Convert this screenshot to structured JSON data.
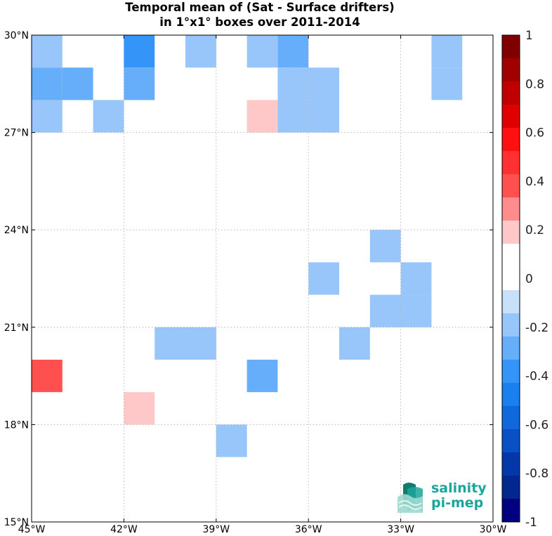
{
  "title": {
    "line1": "Temporal mean of (Sat - Surface drifters)",
    "line2": "in 1°x1° boxes over 2011-2014"
  },
  "axes": {
    "lon_ticks": [
      {
        "lon": -45,
        "label": "45°W"
      },
      {
        "lon": -42,
        "label": "42°W"
      },
      {
        "lon": -39,
        "label": "39°W"
      },
      {
        "lon": -36,
        "label": "36°W"
      },
      {
        "lon": -33,
        "label": "33°W"
      },
      {
        "lon": -30,
        "label": "30°W"
      }
    ],
    "lat_ticks": [
      {
        "lat": 30,
        "label": "30°N"
      },
      {
        "lat": 27,
        "label": "27°N"
      },
      {
        "lat": 24,
        "label": "24°N"
      },
      {
        "lat": 21,
        "label": "21°N"
      },
      {
        "lat": 18,
        "label": "18°N"
      },
      {
        "lat": 15,
        "label": "15°N"
      }
    ],
    "lon_range": [
      -45,
      -30
    ],
    "lat_range": [
      15,
      30
    ],
    "grid": "dotted"
  },
  "chart_data": {
    "type": "heatmap",
    "box_size_deg": 1,
    "value_range": [
      -1,
      1
    ],
    "cells": [
      {
        "lon": -45,
        "lat": 29,
        "value": -0.15
      },
      {
        "lon": -42,
        "lat": 29,
        "value": -0.35
      },
      {
        "lon": -40,
        "lat": 29,
        "value": -0.15
      },
      {
        "lon": -38,
        "lat": 29,
        "value": -0.15
      },
      {
        "lon": -37,
        "lat": 29,
        "value": -0.25
      },
      {
        "lon": -32,
        "lat": 29,
        "value": -0.15
      },
      {
        "lon": -45,
        "lat": 28,
        "value": -0.25
      },
      {
        "lon": -44,
        "lat": 28,
        "value": -0.25
      },
      {
        "lon": -42,
        "lat": 28,
        "value": -0.25
      },
      {
        "lon": -37,
        "lat": 28,
        "value": -0.15
      },
      {
        "lon": -36,
        "lat": 28,
        "value": -0.15
      },
      {
        "lon": -32,
        "lat": 28,
        "value": -0.15
      },
      {
        "lon": -45,
        "lat": 27,
        "value": -0.15
      },
      {
        "lon": -43,
        "lat": 27,
        "value": -0.15
      },
      {
        "lon": -38,
        "lat": 27,
        "value": 0.15
      },
      {
        "lon": -37,
        "lat": 27,
        "value": -0.15
      },
      {
        "lon": -36,
        "lat": 27,
        "value": -0.15
      },
      {
        "lon": -34,
        "lat": 23,
        "value": -0.15
      },
      {
        "lon": -36,
        "lat": 22,
        "value": -0.15
      },
      {
        "lon": -33,
        "lat": 22,
        "value": -0.15
      },
      {
        "lon": -34,
        "lat": 21,
        "value": -0.15
      },
      {
        "lon": -33,
        "lat": 21,
        "value": -0.15
      },
      {
        "lon": -41,
        "lat": 20,
        "value": -0.15
      },
      {
        "lon": -40,
        "lat": 20,
        "value": -0.15
      },
      {
        "lon": -35,
        "lat": 20,
        "value": -0.15
      },
      {
        "lon": -45,
        "lat": 19,
        "value": 0.35
      },
      {
        "lon": -38,
        "lat": 19,
        "value": -0.25
      },
      {
        "lon": -42,
        "lat": 18,
        "value": 0.15
      },
      {
        "lon": -39,
        "lat": 17,
        "value": -0.15
      }
    ]
  },
  "colorbar": {
    "ticks": [
      {
        "value": 1,
        "label": "1"
      },
      {
        "value": 0.8,
        "label": "0.8"
      },
      {
        "value": 0.6,
        "label": "0.6"
      },
      {
        "value": 0.4,
        "label": "0.4"
      },
      {
        "value": 0.2,
        "label": "0.2"
      },
      {
        "value": 0,
        "label": "0"
      },
      {
        "value": -0.2,
        "label": "-0.2"
      },
      {
        "value": -0.4,
        "label": "-0.4"
      },
      {
        "value": -0.6,
        "label": "-0.6"
      },
      {
        "value": -0.8,
        "label": "-0.8"
      },
      {
        "value": -1,
        "label": "-1"
      }
    ],
    "colors_top_to_bottom": [
      "#800000",
      "#a00000",
      "#c00000",
      "#e00000",
      "#ff1010",
      "#ff3030",
      "#ff5050",
      "#ff8c8c",
      "#ffc8c8",
      "#ffffff",
      "#ffffff",
      "#c8e0fa",
      "#98c6fa",
      "#66adfa",
      "#3494f8",
      "#1a80f0",
      "#1068dc",
      "#0850c4",
      "#0438aa",
      "#022890",
      "#000080"
    ]
  },
  "logo": {
    "line1": "salinity",
    "line2": "pi-mep",
    "color": "#1aa69a"
  }
}
